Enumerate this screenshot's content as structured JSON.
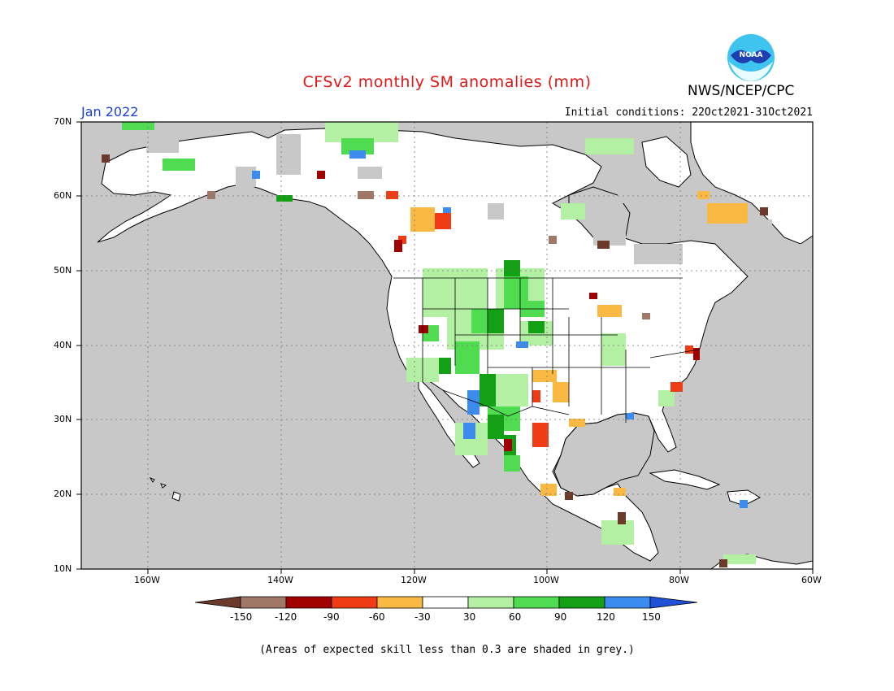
{
  "header": {
    "title": "CFSv2 monthly SM anomalies (mm)",
    "agency": "NWS/NCEP/CPC",
    "logo_text": "NOAA",
    "valid_month": "Jan 2022",
    "initial_conditions": "Initial conditions: 22Oct2021-31Oct2021"
  },
  "map": {
    "lat_labels": [
      "70N",
      "60N",
      "50N",
      "40N",
      "30N",
      "20N",
      "10N"
    ],
    "lon_labels": [
      "160W",
      "140W",
      "120W",
      "100W",
      "80W",
      "60W"
    ],
    "background_grey": "#c8c8c8",
    "land_color": "#ffffff"
  },
  "colorbar": {
    "tick_labels": [
      "-150",
      "-120",
      "-90",
      "-60",
      "-30",
      "30",
      "60",
      "90",
      "120",
      "150"
    ],
    "colors": [
      "#6b3a2a",
      "#a07868",
      "#a00000",
      "#f03c14",
      "#f9b942",
      "#ffffff",
      "#b4f0a4",
      "#50dc50",
      "#14a014",
      "#3c8cf0",
      "#2050d8"
    ]
  },
  "footnote": "(Areas of expected skill less than 0.3 are shaded in grey.)"
}
